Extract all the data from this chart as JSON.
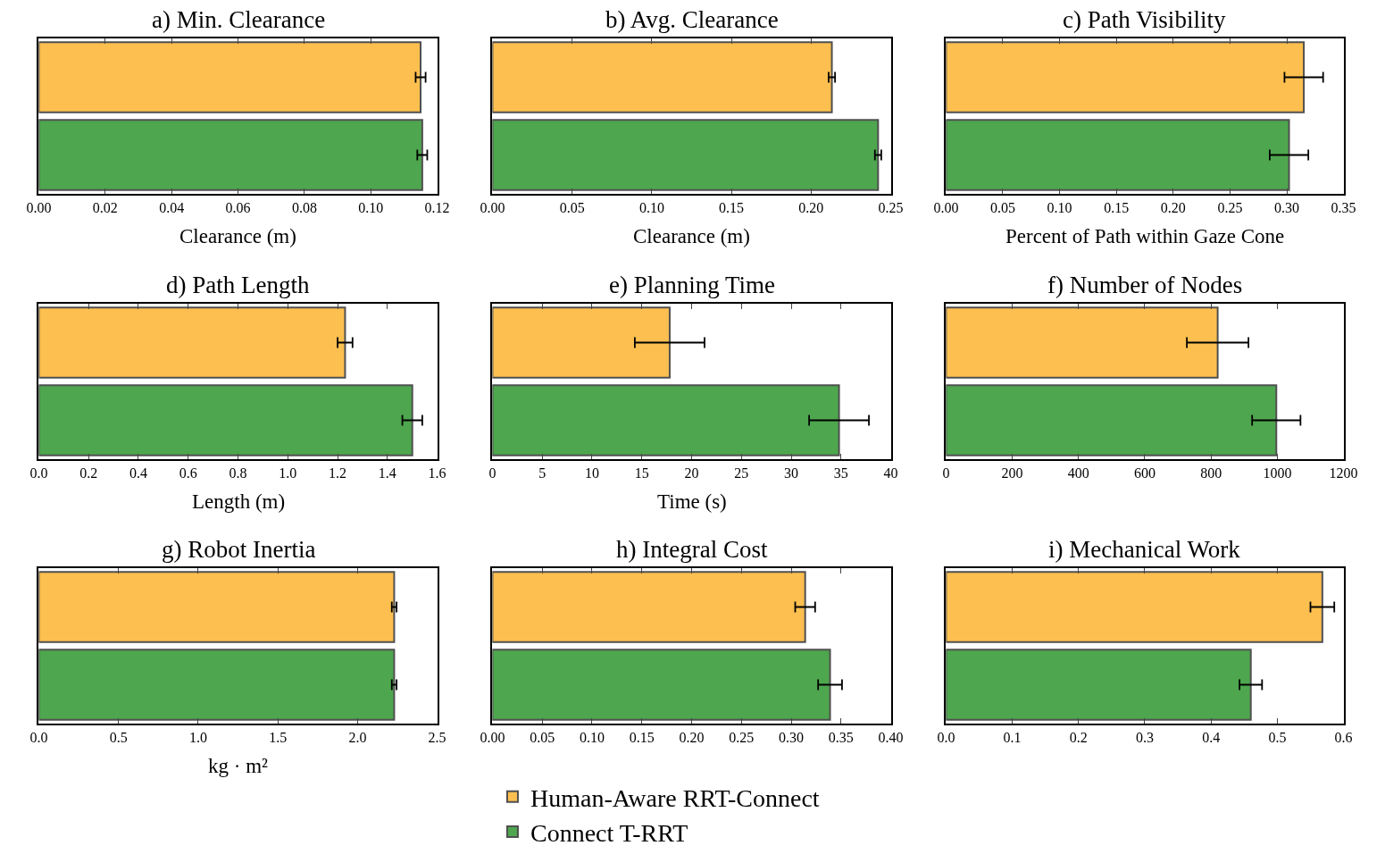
{
  "chart_data": [
    {
      "type": "bar",
      "orientation": "horizontal",
      "title": "a) Min. Clearance",
      "xlabel": "Clearance (m)",
      "categories": [
        null,
        null
      ],
      "xlim": [
        0,
        0.12
      ],
      "xticks": [
        {
          "value": 0,
          "label": "0.00"
        },
        {
          "value": 0.02,
          "label": "0.02"
        },
        {
          "value": 0.04,
          "label": "0.04"
        },
        {
          "value": 0.06,
          "label": "0.06"
        },
        {
          "value": 0.08,
          "label": "0.08"
        },
        {
          "value": 0.1,
          "label": "0.10"
        },
        {
          "value": 0.12,
          "label": "0.12"
        }
      ],
      "tick_labels": "x",
      "series": [
        {
          "color": "#fdbf4f",
          "values": [
            0.115,
            null
          ],
          "errors": [
            0.0015,
            null
          ]
        },
        {
          "color": "#4ea64e",
          "values": [
            null,
            0.1155
          ],
          "errors": [
            null,
            0.0015
          ]
        }
      ]
    },
    {
      "type": "bar",
      "orientation": "horizontal",
      "title": "b) Avg. Clearance",
      "xlabel": "Clearance (m)",
      "categories": [
        null,
        null
      ],
      "xlim": [
        0,
        0.25
      ],
      "xticks": [
        {
          "value": 0,
          "label": "0.00"
        },
        {
          "value": 0.05,
          "label": "0.05"
        },
        {
          "value": 0.1,
          "label": "0.10"
        },
        {
          "value": 0.15,
          "label": "0.15"
        },
        {
          "value": 0.2,
          "label": "0.20"
        },
        {
          "value": 0.25,
          "label": "0.25"
        }
      ],
      "tick_labels": "x",
      "series": [
        {
          "color": "#fdbf4f",
          "values": [
            0.213,
            null
          ],
          "errors": [
            0.002,
            null
          ]
        },
        {
          "color": "#4ea64e",
          "values": [
            null,
            0.242
          ],
          "errors": [
            null,
            0.002
          ]
        }
      ]
    },
    {
      "type": "bar",
      "orientation": "horizontal",
      "title": "c) Path Visibility",
      "xlabel": "Percent of Path within Gaze Cone",
      "categories": [
        null,
        null
      ],
      "xlim": [
        0,
        0.35
      ],
      "xticks": [
        {
          "value": 0,
          "label": "0.00"
        },
        {
          "value": 0.05,
          "label": "0.05"
        },
        {
          "value": 0.1,
          "label": "0.10"
        },
        {
          "value": 0.15,
          "label": "0.15"
        },
        {
          "value": 0.2,
          "label": "0.20"
        },
        {
          "value": 0.25,
          "label": "0.25"
        },
        {
          "value": 0.3,
          "label": "0.30"
        },
        {
          "value": 0.35,
          "label": "0.35"
        }
      ],
      "tick_labels": "x",
      "series": [
        {
          "color": "#fdbf4f",
          "values": [
            0.315,
            null
          ],
          "errors": [
            0.017,
            null
          ]
        },
        {
          "color": "#4ea64e",
          "values": [
            null,
            0.302
          ],
          "errors": [
            null,
            0.017
          ]
        }
      ]
    },
    {
      "type": "bar",
      "orientation": "horizontal",
      "title": "d) Path Length",
      "xlabel": "Length (m)",
      "categories": [
        null,
        null
      ],
      "xlim": [
        0,
        1.6
      ],
      "xticks": [
        {
          "value": 0,
          "label": "0.0"
        },
        0.2,
        0.4,
        0.6,
        0.8,
        {
          "value": 1,
          "label": "1.0"
        },
        1.2,
        1.4,
        1.6
      ],
      "tick_labels": "x",
      "series": [
        {
          "color": "#fdbf4f",
          "values": [
            1.23,
            null
          ],
          "errors": [
            0.03,
            null
          ]
        },
        {
          "color": "#4ea64e",
          "values": [
            null,
            1.5
          ],
          "errors": [
            null,
            0.04
          ]
        }
      ]
    },
    {
      "type": "bar",
      "orientation": "horizontal",
      "title": "e) Planning Time",
      "xlabel": "Time (s)",
      "categories": [
        null,
        null
      ],
      "xlim": [
        0,
        40
      ],
      "xticks": [
        0,
        5,
        10,
        15,
        20,
        25,
        30,
        35,
        40
      ],
      "tick_labels": "x",
      "series": [
        {
          "color": "#fdbf4f",
          "values": [
            17.8,
            null
          ],
          "errors": [
            3.5,
            null
          ]
        },
        {
          "color": "#4ea64e",
          "values": [
            null,
            34.8
          ],
          "errors": [
            null,
            3.0
          ]
        }
      ]
    },
    {
      "type": "bar",
      "orientation": "horizontal",
      "title": "f) Number of Nodes",
      "categories": [
        null,
        null
      ],
      "xlim": [
        0,
        1200
      ],
      "xticks": [
        0,
        200,
        400,
        600,
        800,
        1000,
        1200
      ],
      "tick_labels": "x",
      "series": [
        {
          "color": "#fdbf4f",
          "values": [
            820,
            null
          ],
          "errors": [
            93,
            null
          ]
        },
        {
          "color": "#4ea64e",
          "values": [
            null,
            997
          ],
          "errors": [
            null,
            73
          ]
        }
      ]
    },
    {
      "type": "bar",
      "orientation": "horizontal",
      "title": "g) Robot Inertia",
      "xlabel": "kg · m²",
      "categories": [
        null,
        null
      ],
      "xlim": [
        0,
        2.5
      ],
      "xticks": [
        {
          "value": 0,
          "label": "0.0"
        },
        0.5,
        {
          "value": 1,
          "label": "1.0"
        },
        1.5,
        {
          "value": 2,
          "label": "2.0"
        },
        2.5
      ],
      "tick_labels": "x",
      "series": [
        {
          "color": "#fdbf4f",
          "values": [
            2.23,
            null
          ],
          "errors": [
            0.015,
            null
          ]
        },
        {
          "color": "#4ea64e",
          "values": [
            null,
            2.23
          ],
          "errors": [
            null,
            0.015
          ]
        }
      ]
    },
    {
      "type": "bar",
      "orientation": "horizontal",
      "title": "h) Integral Cost",
      "categories": [
        null,
        null
      ],
      "xlim": [
        0,
        0.4
      ],
      "xticks": [
        {
          "value": 0,
          "label": "0.00"
        },
        {
          "value": 0.05,
          "label": "0.05"
        },
        {
          "value": 0.1,
          "label": "0.10"
        },
        {
          "value": 0.15,
          "label": "0.15"
        },
        {
          "value": 0.2,
          "label": "0.20"
        },
        {
          "value": 0.25,
          "label": "0.25"
        },
        {
          "value": 0.3,
          "label": "0.30"
        },
        {
          "value": 0.35,
          "label": "0.35"
        },
        {
          "value": 0.4,
          "label": "0.40"
        }
      ],
      "tick_labels": "x",
      "legend": "bottom",
      "series": [
        {
          "name": "Human-Aware RRT-Connect",
          "color": "#fdbf4f",
          "values": [
            0.314,
            null
          ],
          "errors": [
            0.01,
            null
          ]
        },
        {
          "name": "Connect T-RRT",
          "color": "#4ea64e",
          "values": [
            null,
            0.339
          ],
          "errors": [
            null,
            0.012
          ]
        }
      ]
    },
    {
      "type": "bar",
      "orientation": "horizontal",
      "title": "i) Mechanical Work",
      "categories": [
        null,
        null
      ],
      "xlim": [
        0,
        0.6
      ],
      "xticks": [
        {
          "value": 0,
          "label": "0.0"
        },
        0.1,
        0.2,
        0.3,
        0.4,
        0.5,
        0.6
      ],
      "tick_labels": "x",
      "series": [
        {
          "color": "#fdbf4f",
          "values": [
            0.568,
            null
          ],
          "errors": [
            0.018,
            null
          ]
        },
        {
          "color": "#4ea64e",
          "values": [
            null,
            0.46
          ],
          "errors": [
            null,
            0.017
          ]
        }
      ]
    }
  ]
}
